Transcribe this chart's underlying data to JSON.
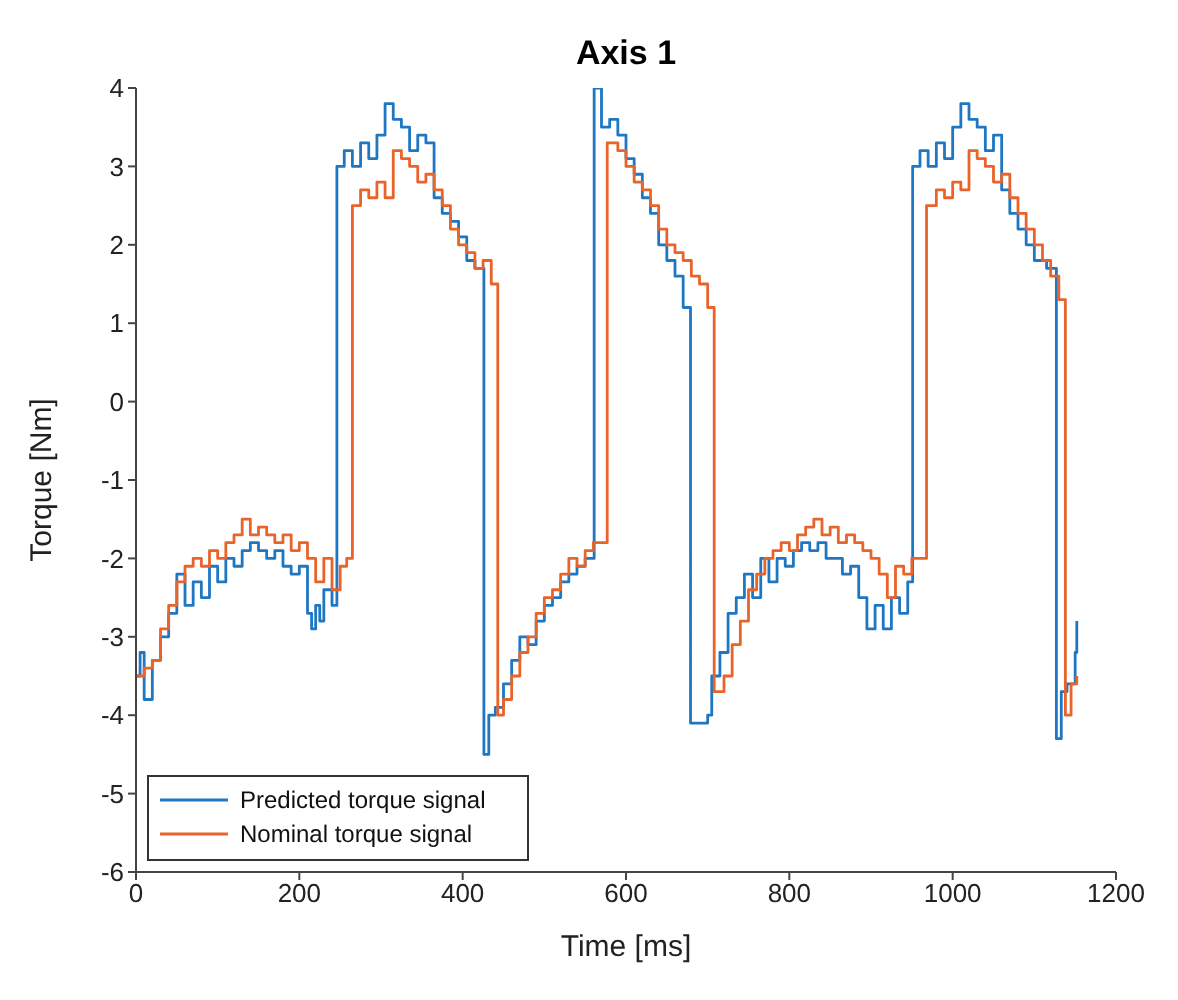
{
  "chart_data": {
    "type": "step",
    "title": "Axis 1",
    "xlabel": "Time [ms]",
    "ylabel": "Torque [Nm]",
    "xlim": [
      0,
      1200
    ],
    "xticks": [
      0,
      200,
      400,
      600,
      800,
      1000,
      1200
    ],
    "ylim": [
      -6,
      4
    ],
    "yticks": [
      -6,
      -5,
      -4,
      -3,
      -2,
      -1,
      0,
      1,
      2,
      3,
      4
    ],
    "grid": false,
    "legend": "bottom left",
    "line_style": "solid",
    "marker": "none",
    "series": [
      {
        "name": "Predicted torque signal",
        "color": "#1f77c4",
        "x": [
          0,
          5,
          10,
          20,
          30,
          40,
          50,
          60,
          70,
          80,
          90,
          100,
          110,
          120,
          130,
          140,
          150,
          160,
          170,
          180,
          190,
          200,
          210,
          215,
          220,
          225,
          230,
          240,
          246,
          255,
          265,
          275,
          285,
          295,
          305,
          315,
          325,
          335,
          345,
          355,
          365,
          375,
          385,
          395,
          405,
          415,
          426,
          432,
          440,
          450,
          460,
          470,
          480,
          490,
          500,
          510,
          520,
          530,
          540,
          550,
          561,
          570,
          580,
          590,
          600,
          610,
          620,
          630,
          640,
          650,
          660,
          670,
          679,
          690,
          700,
          705,
          715,
          725,
          735,
          745,
          755,
          765,
          775,
          785,
          795,
          805,
          815,
          825,
          835,
          845,
          855,
          865,
          875,
          885,
          895,
          905,
          915,
          925,
          935,
          945,
          951,
          960,
          970,
          980,
          990,
          1000,
          1010,
          1020,
          1030,
          1040,
          1050,
          1060,
          1070,
          1080,
          1090,
          1100,
          1115,
          1127,
          1133,
          1140,
          1150,
          1152
        ],
        "values": [
          -3.5,
          -3.2,
          -3.8,
          -3.3,
          -3.0,
          -2.7,
          -2.2,
          -2.6,
          -2.3,
          -2.5,
          -2.1,
          -2.3,
          -2.0,
          -2.1,
          -1.9,
          -1.8,
          -1.9,
          -2.0,
          -1.9,
          -2.1,
          -2.2,
          -2.1,
          -2.7,
          -2.9,
          -2.6,
          -2.8,
          -2.4,
          -2.6,
          3.0,
          3.2,
          3.0,
          3.3,
          3.1,
          3.4,
          3.8,
          3.6,
          3.5,
          3.2,
          3.4,
          3.3,
          2.6,
          2.4,
          2.3,
          2.1,
          1.8,
          1.7,
          -4.5,
          -4.0,
          -3.9,
          -3.6,
          -3.3,
          -3.0,
          -3.1,
          -2.8,
          -2.6,
          -2.5,
          -2.3,
          -2.2,
          -2.1,
          -2.0,
          4.0,
          3.5,
          3.6,
          3.4,
          3.1,
          2.9,
          2.6,
          2.4,
          2.0,
          1.8,
          1.6,
          1.2,
          -4.1,
          -4.1,
          -4.0,
          -3.5,
          -3.2,
          -2.7,
          -2.5,
          -2.2,
          -2.5,
          -2.0,
          -2.3,
          -2.0,
          -2.1,
          -1.9,
          -1.8,
          -1.9,
          -1.8,
          -2.0,
          -2.0,
          -2.2,
          -2.1,
          -2.5,
          -2.9,
          -2.6,
          -2.9,
          -2.5,
          -2.7,
          -2.3,
          3.0,
          3.2,
          3.0,
          3.3,
          3.1,
          3.5,
          3.8,
          3.6,
          3.5,
          3.2,
          3.4,
          2.7,
          2.4,
          2.2,
          2.0,
          1.8,
          1.7,
          -4.3,
          -3.7,
          -3.6,
          -3.2,
          -2.8
        ]
      },
      {
        "name": "Nominal torque signal",
        "color": "#e8642a",
        "x": [
          0,
          10,
          20,
          30,
          40,
          50,
          60,
          70,
          80,
          90,
          100,
          110,
          120,
          130,
          140,
          150,
          160,
          170,
          180,
          190,
          200,
          210,
          220,
          230,
          240,
          250,
          258,
          265,
          275,
          285,
          295,
          305,
          315,
          325,
          335,
          345,
          355,
          365,
          375,
          385,
          395,
          405,
          415,
          425,
          435,
          443,
          450,
          460,
          470,
          480,
          490,
          500,
          510,
          520,
          530,
          540,
          550,
          560,
          577,
          590,
          600,
          610,
          620,
          630,
          640,
          650,
          660,
          670,
          680,
          690,
          700,
          708,
          720,
          730,
          740,
          750,
          760,
          770,
          780,
          790,
          800,
          810,
          820,
          830,
          840,
          850,
          860,
          870,
          880,
          890,
          900,
          910,
          920,
          930,
          940,
          950,
          960,
          968,
          980,
          990,
          1000,
          1010,
          1020,
          1030,
          1040,
          1050,
          1060,
          1070,
          1080,
          1090,
          1100,
          1110,
          1120,
          1130,
          1138,
          1145,
          1152
        ],
        "values": [
          -3.5,
          -3.4,
          -3.3,
          -2.9,
          -2.6,
          -2.3,
          -2.1,
          -2.0,
          -2.1,
          -1.9,
          -2.0,
          -1.8,
          -1.7,
          -1.5,
          -1.7,
          -1.6,
          -1.7,
          -1.8,
          -1.7,
          -1.9,
          -1.8,
          -2.0,
          -2.3,
          -2.0,
          -2.4,
          -2.1,
          -2.0,
          2.5,
          2.7,
          2.6,
          2.8,
          2.6,
          3.2,
          3.1,
          3.0,
          2.8,
          2.9,
          2.7,
          2.5,
          2.2,
          2.0,
          1.9,
          1.7,
          1.8,
          1.5,
          -4.0,
          -3.8,
          -3.5,
          -3.2,
          -3.0,
          -2.7,
          -2.5,
          -2.4,
          -2.2,
          -2.0,
          -2.1,
          -1.9,
          -1.8,
          3.3,
          3.2,
          3.0,
          2.8,
          2.7,
          2.5,
          2.2,
          2.0,
          1.9,
          1.8,
          1.6,
          1.5,
          1.2,
          -3.7,
          -3.5,
          -3.1,
          -2.8,
          -2.4,
          -2.2,
          -2.0,
          -1.9,
          -1.8,
          -1.9,
          -1.7,
          -1.6,
          -1.5,
          -1.7,
          -1.6,
          -1.8,
          -1.7,
          -1.8,
          -1.9,
          -2.0,
          -2.2,
          -2.5,
          -2.1,
          -2.2,
          -2.0,
          -2.0,
          2.5,
          2.7,
          2.6,
          2.8,
          2.7,
          3.2,
          3.1,
          3.0,
          2.8,
          2.9,
          2.6,
          2.4,
          2.2,
          2.0,
          1.8,
          1.6,
          1.3,
          -4.0,
          -3.6,
          -3.5
        ]
      }
    ]
  }
}
